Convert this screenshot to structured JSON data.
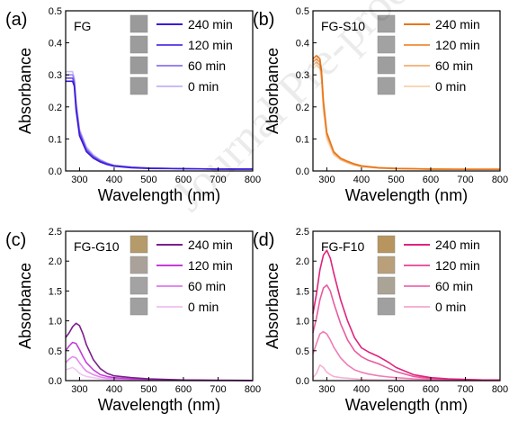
{
  "watermark": "Journal Pre-proof",
  "chart_data": [
    {
      "panel": "(a)",
      "label": "FG",
      "type": "line",
      "xlabel": "Wavelength (nm)",
      "ylabel": "Absorbance",
      "xlim": [
        260,
        800
      ],
      "ylim": [
        0,
        0.5
      ],
      "xticks": [
        300,
        400,
        500,
        600,
        700,
        800
      ],
      "yticks": [
        0.0,
        0.1,
        0.2,
        0.3,
        0.4,
        0.5
      ],
      "legend_position": "top-right",
      "swatch_colors": [
        "#9a9a9a",
        "#9c9c9c",
        "#9a9a9a",
        "#9c9c9c"
      ],
      "series": [
        {
          "name": "240 min",
          "color": "#3b1ad8",
          "x": [
            260,
            270,
            280,
            285,
            290,
            300,
            320,
            340,
            360,
            380,
            400,
            450,
            500,
            600,
            700,
            800
          ],
          "y": [
            0.28,
            0.28,
            0.28,
            0.265,
            0.19,
            0.11,
            0.06,
            0.04,
            0.028,
            0.02,
            0.015,
            0.01,
            0.008,
            0.007,
            0.006,
            0.006
          ]
        },
        {
          "name": "120 min",
          "color": "#6a4ae8",
          "x": [
            260,
            270,
            280,
            285,
            290,
            300,
            320,
            340,
            360,
            380,
            400,
            450,
            500,
            600,
            700,
            800
          ],
          "y": [
            0.29,
            0.29,
            0.29,
            0.275,
            0.2,
            0.12,
            0.065,
            0.044,
            0.031,
            0.022,
            0.016,
            0.011,
            0.009,
            0.007,
            0.006,
            0.006
          ]
        },
        {
          "name": "60 min",
          "color": "#9a85f0",
          "x": [
            260,
            270,
            280,
            285,
            290,
            300,
            320,
            340,
            360,
            380,
            400,
            450,
            500,
            600,
            700,
            800
          ],
          "y": [
            0.3,
            0.3,
            0.3,
            0.285,
            0.21,
            0.125,
            0.07,
            0.047,
            0.033,
            0.024,
            0.017,
            0.012,
            0.009,
            0.007,
            0.006,
            0.006
          ]
        },
        {
          "name": "0 min",
          "color": "#c9bdf7",
          "x": [
            260,
            270,
            280,
            285,
            290,
            300,
            320,
            340,
            360,
            380,
            400,
            450,
            500,
            600,
            700,
            800
          ],
          "y": [
            0.31,
            0.31,
            0.31,
            0.29,
            0.22,
            0.13,
            0.075,
            0.05,
            0.035,
            0.025,
            0.018,
            0.012,
            0.009,
            0.007,
            0.006,
            0.006
          ]
        }
      ]
    },
    {
      "panel": "(b)",
      "label": "FG-S10",
      "type": "line",
      "xlabel": "Wavelength (nm)",
      "ylabel": "Absorbance",
      "xlim": [
        260,
        800
      ],
      "ylim": [
        0,
        0.5
      ],
      "xticks": [
        300,
        400,
        500,
        600,
        700,
        800
      ],
      "yticks": [
        0.0,
        0.1,
        0.2,
        0.3,
        0.4,
        0.5
      ],
      "legend_position": "top-right",
      "swatch_colors": [
        "#a0a0a0",
        "#a2a2a2",
        "#9e9e9e",
        "#a0a0a0"
      ],
      "series": [
        {
          "name": "240 min",
          "color": "#e8761a",
          "x": [
            260,
            270,
            280,
            285,
            290,
            300,
            320,
            340,
            360,
            380,
            400,
            450,
            500,
            600,
            700,
            800
          ],
          "y": [
            0.35,
            0.36,
            0.35,
            0.31,
            0.22,
            0.12,
            0.06,
            0.04,
            0.03,
            0.022,
            0.016,
            0.01,
            0.008,
            0.006,
            0.005,
            0.005
          ]
        },
        {
          "name": "120 min",
          "color": "#f19a4e",
          "x": [
            260,
            270,
            280,
            285,
            290,
            300,
            320,
            340,
            360,
            380,
            400,
            450,
            500,
            600,
            700,
            800
          ],
          "y": [
            0.34,
            0.35,
            0.34,
            0.3,
            0.21,
            0.115,
            0.058,
            0.038,
            0.028,
            0.02,
            0.015,
            0.01,
            0.008,
            0.006,
            0.005,
            0.005
          ]
        },
        {
          "name": "60 min",
          "color": "#f5b884",
          "x": [
            260,
            270,
            280,
            285,
            290,
            300,
            320,
            340,
            360,
            380,
            400,
            450,
            500,
            600,
            700,
            800
          ],
          "y": [
            0.33,
            0.34,
            0.33,
            0.29,
            0.2,
            0.11,
            0.055,
            0.036,
            0.027,
            0.019,
            0.014,
            0.009,
            0.007,
            0.006,
            0.005,
            0.005
          ]
        },
        {
          "name": "0 min",
          "color": "#f9d6b6",
          "x": [
            260,
            270,
            280,
            285,
            290,
            300,
            320,
            340,
            360,
            380,
            400,
            450,
            500,
            600,
            700,
            800
          ],
          "y": [
            0.32,
            0.33,
            0.32,
            0.28,
            0.19,
            0.1,
            0.05,
            0.034,
            0.025,
            0.018,
            0.013,
            0.009,
            0.007,
            0.006,
            0.005,
            0.005
          ]
        }
      ]
    },
    {
      "panel": "(c)",
      "label": "FG-G10",
      "type": "line",
      "xlabel": "Wavelength (nm)",
      "ylabel": "Absorbance",
      "xlim": [
        260,
        800
      ],
      "ylim": [
        0,
        2.5
      ],
      "xticks": [
        300,
        400,
        500,
        600,
        700,
        800
      ],
      "yticks": [
        0.0,
        0.5,
        1.0,
        1.5,
        2.0,
        2.5
      ],
      "legend_position": "top-right",
      "swatch_colors": [
        "#b59a6a",
        "#aaa29a",
        "#a3a3a3",
        "#a0a0a0"
      ],
      "series": [
        {
          "name": "240 min",
          "color": "#7b1f8c",
          "x": [
            260,
            270,
            280,
            290,
            300,
            310,
            320,
            340,
            360,
            380,
            400,
            450,
            500,
            600,
            700,
            800
          ],
          "y": [
            0.72,
            0.8,
            0.9,
            0.96,
            0.92,
            0.78,
            0.6,
            0.35,
            0.2,
            0.12,
            0.08,
            0.05,
            0.03,
            0.01,
            0.005,
            0.003
          ]
        },
        {
          "name": "120 min",
          "color": "#c43ed6",
          "x": [
            260,
            270,
            280,
            290,
            300,
            310,
            320,
            340,
            360,
            380,
            400,
            450,
            500,
            600,
            700,
            800
          ],
          "y": [
            0.5,
            0.58,
            0.64,
            0.62,
            0.52,
            0.4,
            0.3,
            0.18,
            0.1,
            0.07,
            0.05,
            0.03,
            0.02,
            0.01,
            0.005,
            0.003
          ]
        },
        {
          "name": "60 min",
          "color": "#e28aec",
          "x": [
            260,
            270,
            280,
            290,
            300,
            310,
            320,
            340,
            360,
            380,
            400,
            450,
            500,
            600,
            700,
            800
          ],
          "y": [
            0.3,
            0.36,
            0.4,
            0.38,
            0.3,
            0.22,
            0.16,
            0.1,
            0.06,
            0.04,
            0.03,
            0.02,
            0.01,
            0.005,
            0.003,
            0.002
          ]
        },
        {
          "name": "0 min",
          "color": "#f2c6f6",
          "x": [
            260,
            270,
            280,
            290,
            300,
            310,
            320,
            340,
            360,
            380,
            400,
            450,
            500,
            600,
            700,
            800
          ],
          "y": [
            0.18,
            0.2,
            0.22,
            0.18,
            0.12,
            0.09,
            0.07,
            0.05,
            0.03,
            0.02,
            0.01,
            0.01,
            0.005,
            0.003,
            0.002,
            0.002
          ]
        }
      ]
    },
    {
      "panel": "(d)",
      "label": "FG-F10",
      "type": "line",
      "xlabel": "Wavelength (nm)",
      "ylabel": "Absorbance",
      "xlim": [
        260,
        800
      ],
      "ylim": [
        0,
        2.5
      ],
      "xticks": [
        300,
        400,
        500,
        600,
        700,
        800
      ],
      "yticks": [
        0.0,
        0.5,
        1.0,
        1.5,
        2.0,
        2.5
      ],
      "legend_position": "top-right",
      "swatch_colors": [
        "#b8955e",
        "#b9a07a",
        "#aaa496",
        "#a0a0a0"
      ],
      "series": [
        {
          "name": "240 min",
          "color": "#e0237c",
          "x": [
            260,
            270,
            280,
            290,
            300,
            310,
            320,
            340,
            360,
            380,
            400,
            420,
            450,
            480,
            500,
            550,
            600,
            650,
            700,
            750,
            800
          ],
          "y": [
            1.12,
            1.45,
            1.85,
            2.1,
            2.18,
            2.05,
            1.8,
            1.35,
            1.0,
            0.72,
            0.55,
            0.48,
            0.4,
            0.3,
            0.22,
            0.1,
            0.05,
            0.03,
            0.02,
            0.01,
            0.01
          ]
        },
        {
          "name": "120 min",
          "color": "#ea5aa0",
          "x": [
            260,
            270,
            280,
            290,
            300,
            310,
            320,
            340,
            360,
            380,
            400,
            420,
            450,
            480,
            500,
            550,
            600,
            650,
            700,
            750,
            800
          ],
          "y": [
            0.8,
            1.05,
            1.35,
            1.55,
            1.6,
            1.5,
            1.3,
            0.95,
            0.68,
            0.5,
            0.4,
            0.34,
            0.28,
            0.2,
            0.15,
            0.07,
            0.035,
            0.02,
            0.015,
            0.01,
            0.008
          ]
        },
        {
          "name": "60 min",
          "color": "#f07cb7",
          "x": [
            260,
            270,
            280,
            290,
            300,
            310,
            320,
            340,
            360,
            380,
            400,
            420,
            450,
            480,
            500,
            550,
            600,
            650,
            700,
            750,
            800
          ],
          "y": [
            0.45,
            0.62,
            0.78,
            0.82,
            0.78,
            0.68,
            0.56,
            0.38,
            0.26,
            0.18,
            0.14,
            0.11,
            0.08,
            0.06,
            0.05,
            0.03,
            0.02,
            0.01,
            0.008,
            0.006,
            0.005
          ]
        },
        {
          "name": "0 min",
          "color": "#f6b1d4",
          "x": [
            260,
            270,
            280,
            290,
            300,
            310,
            320,
            340,
            360,
            380,
            400,
            420,
            450,
            480,
            500,
            550,
            600,
            650,
            700,
            750,
            800
          ],
          "y": [
            0.05,
            0.12,
            0.26,
            0.22,
            0.14,
            0.1,
            0.07,
            0.05,
            0.04,
            0.03,
            0.02,
            0.015,
            0.01,
            0.008,
            0.006,
            0.004,
            0.003,
            0.002,
            0.002,
            0.001,
            0.001
          ]
        }
      ]
    }
  ]
}
